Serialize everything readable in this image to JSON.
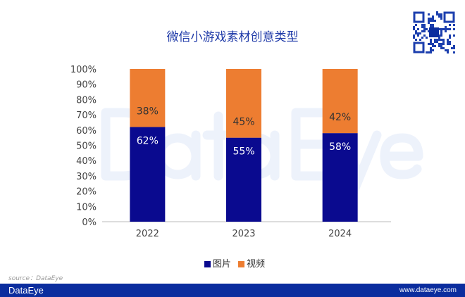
{
  "watermark": "DataEye",
  "source": "source：DataEye",
  "footer": {
    "brand": "DataEye",
    "url": "www.dataeye.com"
  },
  "colors": {
    "image": "#0a0a8f",
    "video": "#ed7d31",
    "footer": "#0b2d9e",
    "title": "#1f3aa8"
  },
  "chart_data": {
    "type": "bar",
    "stacked": true,
    "title": "微信小游戏素材创意类型",
    "categories": [
      "2022",
      "2023",
      "2024"
    ],
    "series": [
      {
        "name": "图片",
        "values": [
          62,
          55,
          58
        ],
        "labels": [
          "62%",
          "55%",
          "58%"
        ]
      },
      {
        "name": "视频",
        "values": [
          38,
          45,
          42
        ],
        "labels": [
          "38%",
          "45%",
          "42%"
        ]
      }
    ],
    "ylim": [
      0,
      100
    ],
    "yticks": [
      "0%",
      "10%",
      "20%",
      "30%",
      "40%",
      "50%",
      "60%",
      "70%",
      "80%",
      "90%",
      "100%"
    ],
    "grid": false,
    "legend": "bottom"
  }
}
